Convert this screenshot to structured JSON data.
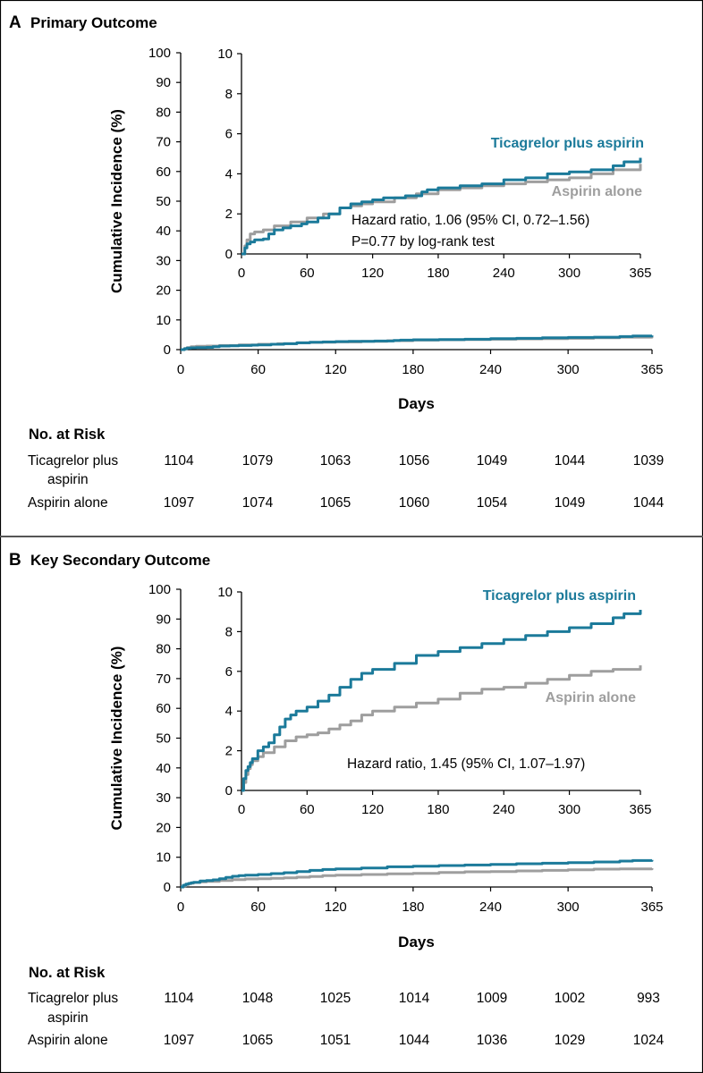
{
  "chart_data": [
    {
      "type": "line",
      "panel": "A",
      "title": "Primary Outcome",
      "xlabel": "Days",
      "ylabel": "Cumulative Incidence (%)",
      "xlim": [
        0,
        365
      ],
      "ylim": [
        0,
        100
      ],
      "xticks": [
        "0",
        "60",
        "120",
        "180",
        "240",
        "300",
        "365"
      ],
      "yticks": [
        "0",
        "10",
        "20",
        "30",
        "40",
        "50",
        "60",
        "70",
        "80",
        "90",
        "100"
      ],
      "inset": {
        "xlim": [
          0,
          365
        ],
        "ylim": [
          0,
          10
        ],
        "xticks": [
          "0",
          "60",
          "120",
          "180",
          "240",
          "300",
          "365"
        ],
        "yticks": [
          "0",
          "2",
          "4",
          "6",
          "8",
          "10"
        ],
        "annotation_lines": [
          "Hazard ratio, 1.06 (95% CI, 0.72–1.56)",
          "P=0.77 by log-rank test"
        ]
      },
      "series": [
        {
          "name": "Ticagrelor plus aspirin",
          "color": "#1b7a9a",
          "x": [
            0,
            3,
            5,
            8,
            12,
            20,
            25,
            30,
            38,
            45,
            55,
            60,
            70,
            80,
            90,
            100,
            110,
            120,
            130,
            150,
            165,
            170,
            180,
            200,
            220,
            240,
            260,
            280,
            300,
            320,
            340,
            350,
            365
          ],
          "y": [
            0,
            0.3,
            0.5,
            0.6,
            0.7,
            0.75,
            1.0,
            1.2,
            1.3,
            1.4,
            1.5,
            1.6,
            1.8,
            2.0,
            2.3,
            2.5,
            2.6,
            2.7,
            2.8,
            2.9,
            3.1,
            3.2,
            3.3,
            3.4,
            3.5,
            3.7,
            3.8,
            4.0,
            4.1,
            4.2,
            4.4,
            4.6,
            4.8
          ]
        },
        {
          "name": "Aspirin alone",
          "color": "#9e9e9e",
          "x": [
            0,
            3,
            5,
            8,
            12,
            20,
            30,
            45,
            60,
            75,
            90,
            100,
            110,
            120,
            140,
            160,
            180,
            200,
            220,
            240,
            260,
            280,
            300,
            320,
            340,
            365
          ],
          "y": [
            0,
            0.4,
            0.7,
            1.0,
            1.1,
            1.2,
            1.4,
            1.6,
            1.8,
            2.0,
            2.3,
            2.4,
            2.5,
            2.6,
            2.8,
            3.0,
            3.2,
            3.3,
            3.4,
            3.5,
            3.6,
            3.7,
            3.8,
            4.0,
            4.2,
            4.5
          ]
        }
      ],
      "risk_table": {
        "title": "No. at Risk",
        "rows": [
          {
            "label_lines": [
              "Ticagrelor plus",
              "aspirin"
            ],
            "values": [
              "1104",
              "1079",
              "1063",
              "1056",
              "1049",
              "1044",
              "1039"
            ]
          },
          {
            "label_lines": [
              "Aspirin alone"
            ],
            "values": [
              "1097",
              "1074",
              "1065",
              "1060",
              "1054",
              "1049",
              "1044"
            ]
          }
        ]
      }
    },
    {
      "type": "line",
      "panel": "B",
      "title": "Key Secondary Outcome",
      "xlabel": "Days",
      "ylabel": "Cumulative Incidence (%)",
      "xlim": [
        0,
        365
      ],
      "ylim": [
        0,
        100
      ],
      "xticks": [
        "0",
        "60",
        "120",
        "180",
        "240",
        "300",
        "365"
      ],
      "yticks": [
        "0",
        "10",
        "20",
        "30",
        "40",
        "50",
        "60",
        "70",
        "80",
        "90",
        "100"
      ],
      "inset": {
        "xlim": [
          0,
          365
        ],
        "ylim": [
          0,
          10
        ],
        "xticks": [
          "0",
          "60",
          "120",
          "180",
          "240",
          "300",
          "365"
        ],
        "yticks": [
          "0",
          "2",
          "4",
          "6",
          "8",
          "10"
        ],
        "annotation_lines": [
          "Hazard ratio, 1.45 (95% CI, 1.07–1.97)"
        ]
      },
      "series": [
        {
          "name": "Ticagrelor plus aspirin",
          "color": "#1b7a9a",
          "x": [
            0,
            2,
            4,
            6,
            8,
            10,
            15,
            20,
            25,
            30,
            35,
            40,
            45,
            50,
            60,
            70,
            80,
            90,
            100,
            110,
            120,
            140,
            160,
            180,
            200,
            220,
            240,
            260,
            280,
            300,
            320,
            340,
            350,
            365
          ],
          "y": [
            0,
            0.6,
            1.0,
            1.2,
            1.4,
            1.6,
            2.0,
            2.2,
            2.4,
            2.8,
            3.2,
            3.6,
            3.8,
            4.0,
            4.2,
            4.5,
            4.8,
            5.2,
            5.6,
            5.9,
            6.1,
            6.4,
            6.8,
            7.0,
            7.2,
            7.4,
            7.6,
            7.8,
            8.0,
            8.2,
            8.4,
            8.7,
            8.9,
            9.1
          ]
        },
        {
          "name": "Aspirin alone",
          "color": "#9e9e9e",
          "x": [
            0,
            2,
            4,
            6,
            8,
            10,
            15,
            20,
            30,
            40,
            50,
            60,
            70,
            80,
            90,
            100,
            110,
            120,
            140,
            160,
            180,
            200,
            220,
            240,
            260,
            280,
            300,
            320,
            340,
            365
          ],
          "y": [
            0,
            0.4,
            0.8,
            1.1,
            1.3,
            1.5,
            1.7,
            1.9,
            2.2,
            2.5,
            2.7,
            2.8,
            2.9,
            3.1,
            3.3,
            3.5,
            3.8,
            4.0,
            4.2,
            4.4,
            4.6,
            4.9,
            5.1,
            5.2,
            5.4,
            5.6,
            5.8,
            6.0,
            6.1,
            6.3
          ]
        }
      ],
      "risk_table": {
        "title": "No. at Risk",
        "rows": [
          {
            "label_lines": [
              "Ticagrelor plus",
              "aspirin"
            ],
            "values": [
              "1104",
              "1048",
              "1025",
              "1014",
              "1009",
              "1002",
              "993"
            ]
          },
          {
            "label_lines": [
              "Aspirin alone"
            ],
            "values": [
              "1097",
              "1065",
              "1051",
              "1044",
              "1036",
              "1029",
              "1024"
            ]
          }
        ]
      }
    }
  ]
}
